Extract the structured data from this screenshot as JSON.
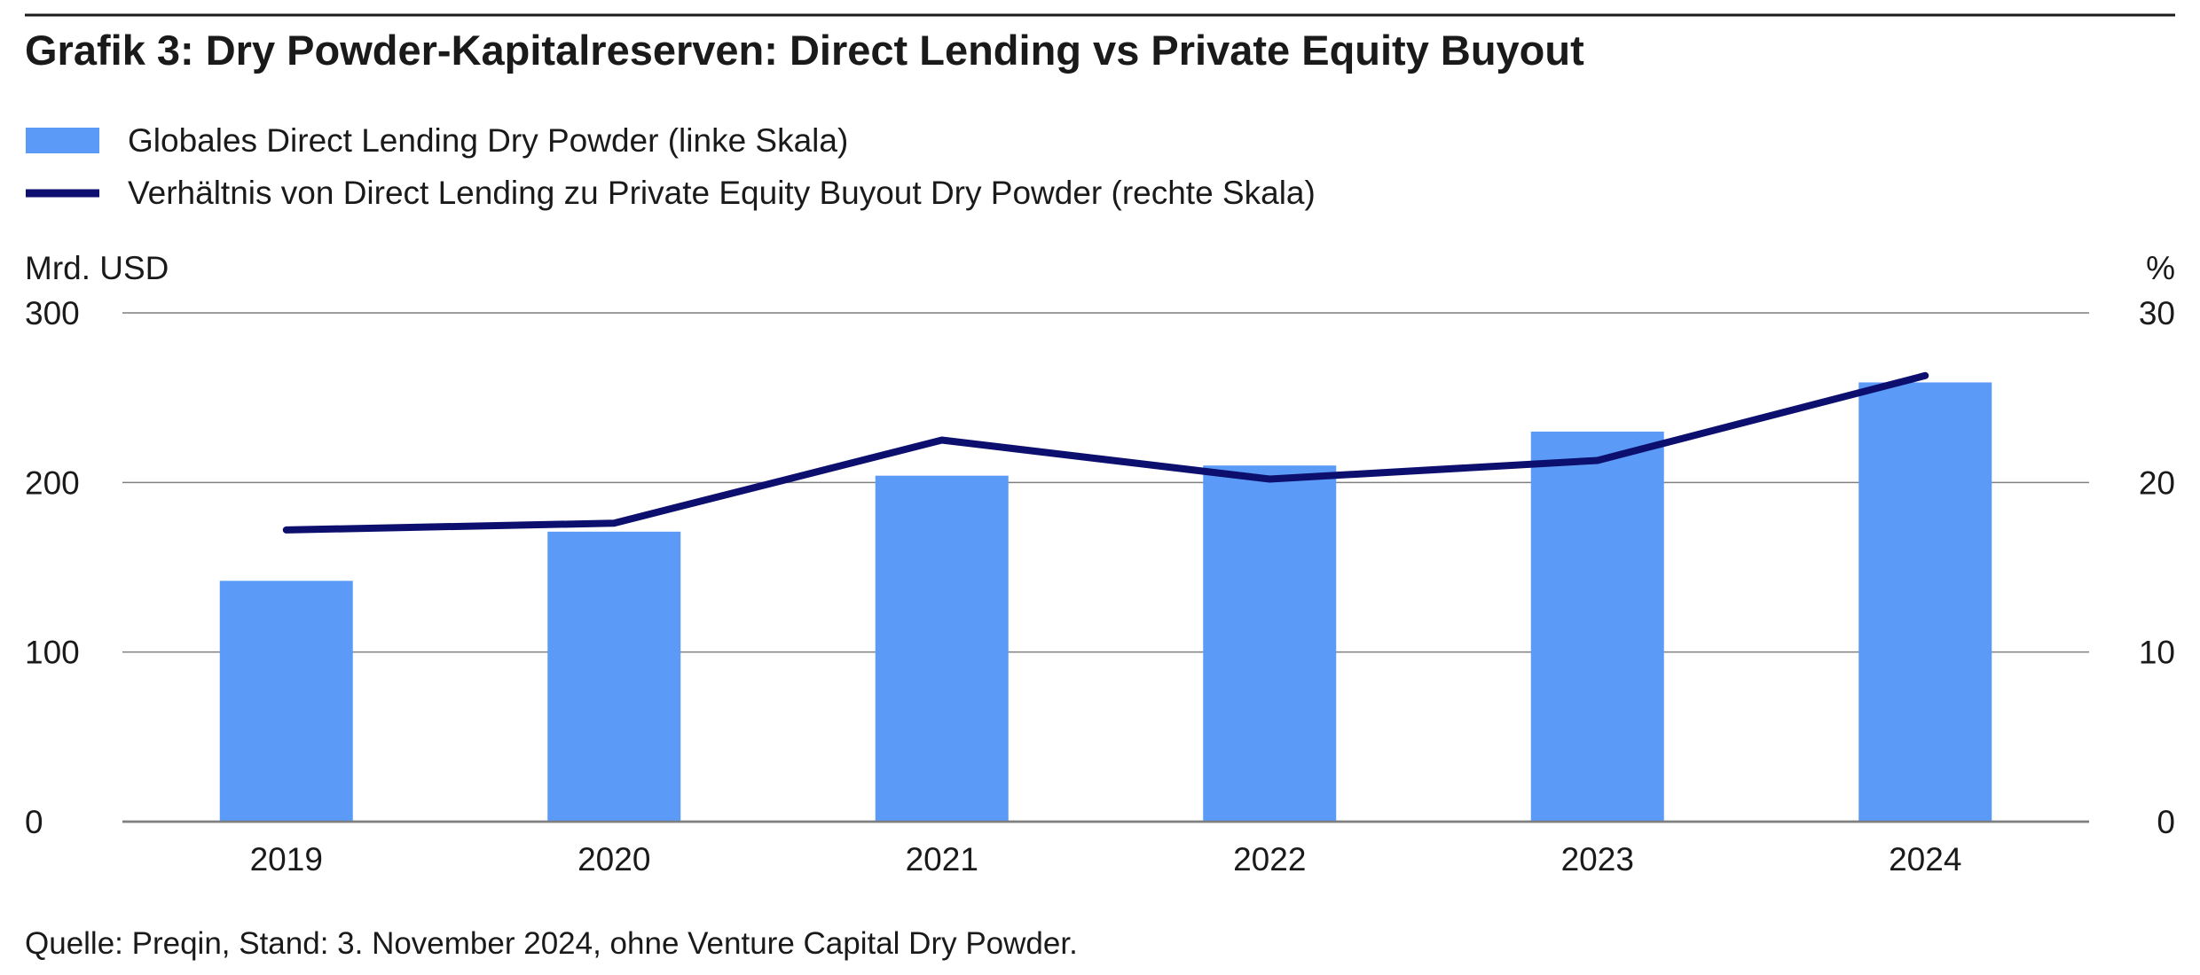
{
  "title": "Grafik 3: Dry Powder-Kapitalreserven: Direct Lending vs Private Equity Buyout",
  "source": "Quelle: Preqin, Stand: 3. November 2024, ohne Venture Capital Dry Powder.",
  "colors": {
    "bar": "#5b9bf7",
    "line": "#0d0f6e",
    "grid": "#7f7f7f",
    "title_rule": "#1a1a1a"
  },
  "chart_data": {
    "type": "bar+line",
    "title": "Grafik 3: Dry Powder-Kapitalreserven: Direct Lending vs Private Equity Buyout",
    "categories": [
      "2019",
      "2020",
      "2021",
      "2022",
      "2023",
      "2024"
    ],
    "series": [
      {
        "name": "Globales Direct Lending Dry Powder (linke Skala)",
        "type": "bar",
        "axis": "left",
        "values": [
          142,
          171,
          204,
          210,
          230,
          259
        ]
      },
      {
        "name": "Verhältnis von Direct Lending zu Private Equity Buyout Dry Powder (rechte Skala)",
        "type": "line",
        "axis": "right",
        "values": [
          17.2,
          17.6,
          22.5,
          20.2,
          21.3,
          26.3
        ]
      }
    ],
    "y_left": {
      "label": "Mrd. USD",
      "range": [
        0,
        300
      ],
      "ticks": [
        "0",
        "100",
        "200",
        "300"
      ]
    },
    "y_right": {
      "label": "%",
      "range": [
        0,
        30
      ],
      "ticks": [
        "0",
        "10",
        "20",
        "30"
      ]
    },
    "grid": true,
    "legend_position": "top-left"
  }
}
